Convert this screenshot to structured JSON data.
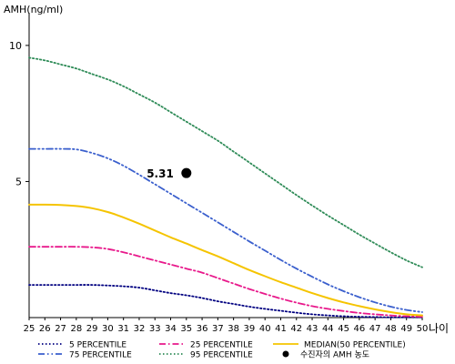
{
  "chart_data": {
    "type": "line",
    "ylabel": "AMH(ng/ml)",
    "xlabel": "나이",
    "x": [
      25,
      26,
      27,
      28,
      29,
      30,
      31,
      32,
      33,
      34,
      35,
      36,
      37,
      38,
      39,
      40,
      41,
      42,
      43,
      44,
      45,
      46,
      47,
      48,
      49,
      50
    ],
    "xlim": [
      25,
      50
    ],
    "ylim": [
      0,
      11
    ],
    "yticks": [
      5,
      10
    ],
    "series": [
      {
        "name": "5 PERCENTILE",
        "color": "#000080",
        "dash": "dotted",
        "values": [
          1.2,
          1.2,
          1.2,
          1.2,
          1.2,
          1.18,
          1.15,
          1.1,
          1.0,
          0.9,
          0.82,
          0.72,
          0.6,
          0.5,
          0.4,
          0.32,
          0.25,
          0.18,
          0.12,
          0.08,
          0.05,
          0.03,
          0.02,
          0.01,
          0.01,
          0.01
        ]
      },
      {
        "name": "25 PERCENTILE",
        "color": "#e8198b",
        "dash": "dashdot",
        "values": [
          2.6,
          2.6,
          2.6,
          2.6,
          2.58,
          2.52,
          2.4,
          2.25,
          2.1,
          1.95,
          1.8,
          1.65,
          1.45,
          1.25,
          1.05,
          0.87,
          0.7,
          0.55,
          0.42,
          0.32,
          0.24,
          0.17,
          0.12,
          0.08,
          0.05,
          0.03
        ]
      },
      {
        "name": "MEDIAN(50 PERCENTILE)",
        "color": "#f5c400",
        "dash": "solid",
        "values": [
          4.15,
          4.15,
          4.14,
          4.1,
          4.02,
          3.88,
          3.68,
          3.45,
          3.2,
          2.95,
          2.72,
          2.48,
          2.25,
          2.0,
          1.75,
          1.52,
          1.3,
          1.1,
          0.9,
          0.72,
          0.56,
          0.42,
          0.3,
          0.2,
          0.12,
          0.08
        ]
      },
      {
        "name": "75 PERCENTILE",
        "color": "#3a5fcd",
        "dash": "dashdotdot",
        "values": [
          6.2,
          6.2,
          6.2,
          6.18,
          6.05,
          5.85,
          5.58,
          5.25,
          4.9,
          4.55,
          4.2,
          3.85,
          3.5,
          3.15,
          2.8,
          2.46,
          2.12,
          1.8,
          1.5,
          1.22,
          0.97,
          0.75,
          0.56,
          0.4,
          0.28,
          0.2
        ]
      },
      {
        "name": "95 PERCENTILE",
        "color": "#2e8b57",
        "dash": "dotted",
        "values": [
          9.55,
          9.45,
          9.3,
          9.15,
          8.95,
          8.75,
          8.5,
          8.2,
          7.9,
          7.55,
          7.2,
          6.85,
          6.5,
          6.1,
          5.7,
          5.3,
          4.9,
          4.5,
          4.12,
          3.75,
          3.4,
          3.05,
          2.72,
          2.4,
          2.1,
          1.85
        ]
      }
    ],
    "point": {
      "label": "수진자의 AMH 농도",
      "x": 35,
      "y": 5.31,
      "text": "5.31"
    },
    "legend_position": "bottom"
  }
}
